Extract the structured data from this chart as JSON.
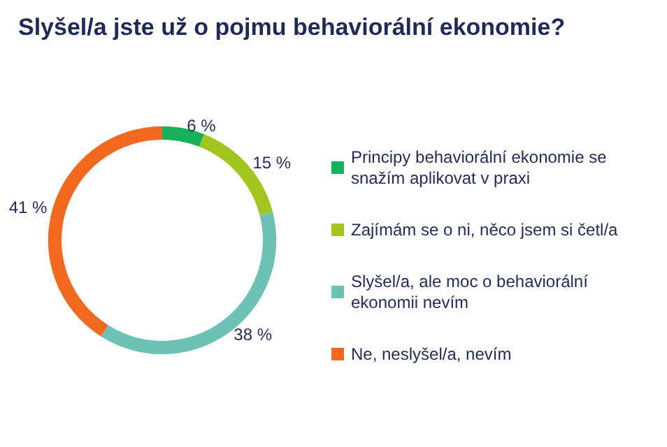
{
  "chart_data": {
    "type": "donut",
    "title": "Slyšel/a jste už o pojmu behaviorální ekonomie?",
    "categories": [
      "Principy behaviorální ekonomie se snažím aplikovat v praxi",
      "Zajímám se o ni, něco jsem si četl/a",
      "Slyšel/a, ale moc o behaviorální ekonomii nevím",
      "Ne, neslyšel/a, nevím"
    ],
    "values": [
      6,
      15,
      38,
      41
    ],
    "colors": [
      "#16b05a",
      "#a2c51f",
      "#6cc3b5",
      "#f2681f"
    ],
    "value_labels": [
      "6 %",
      "15 %",
      "38 %",
      "41 %"
    ],
    "legend": "right"
  }
}
